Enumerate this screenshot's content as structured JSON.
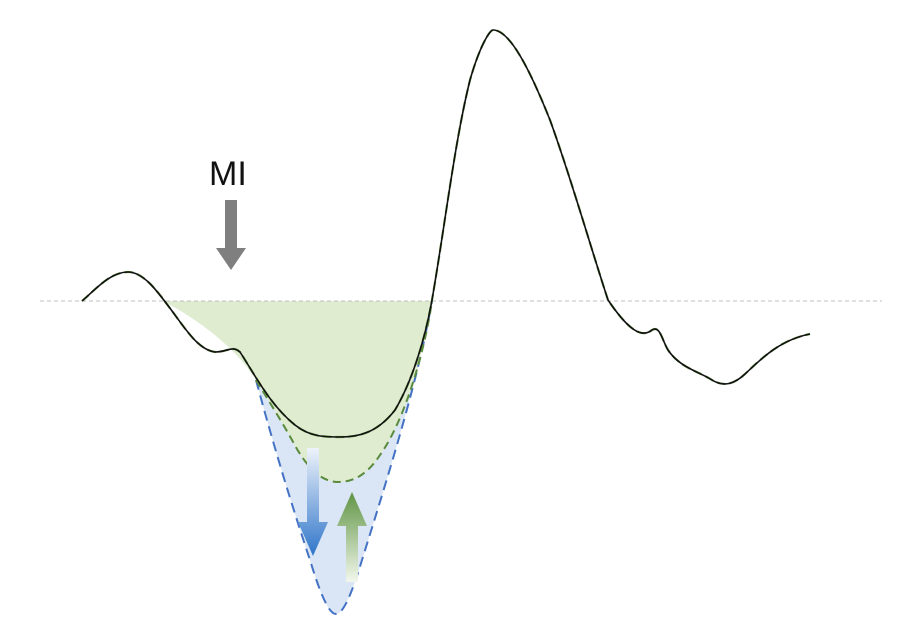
{
  "annotation": {
    "label": "MI"
  },
  "colors": {
    "baseline": "#bfbfbf",
    "main_trace": "#111111",
    "green_trace": "#5a8a3c",
    "green_fill": "#dfeccf",
    "blue_trace": "#4472c4",
    "blue_fill": "#dae6f5",
    "mi_arrow": "#7f7f7f",
    "down_arrow": "#2f75c9",
    "up_arrow": "#5f9443"
  }
}
